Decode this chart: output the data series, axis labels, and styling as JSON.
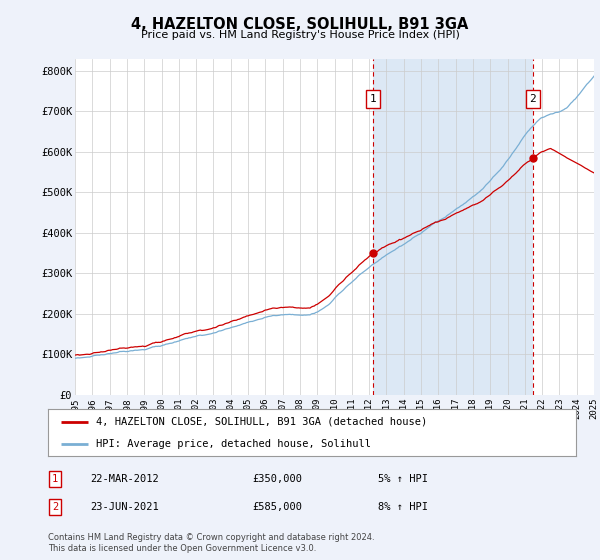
{
  "title": "4, HAZELTON CLOSE, SOLIHULL, B91 3GA",
  "subtitle": "Price paid vs. HM Land Registry's House Price Index (HPI)",
  "ylim": [
    0,
    830000
  ],
  "yticks": [
    0,
    100000,
    200000,
    300000,
    400000,
    500000,
    600000,
    700000,
    800000
  ],
  "ytick_labels": [
    "£0",
    "£100K",
    "£200K",
    "£300K",
    "£400K",
    "£500K",
    "£600K",
    "£700K",
    "£800K"
  ],
  "background_color": "#eef2fa",
  "plot_bg_color": "#ffffff",
  "shade_color": "#dce8f5",
  "grid_color": "#cccccc",
  "line1_color": "#cc0000",
  "line2_color": "#7aafd4",
  "sale1_year": 2012.22,
  "sale1_price": 350000,
  "sale2_year": 2021.47,
  "sale2_price": 585000,
  "annotation1_date": "22-MAR-2012",
  "annotation1_price": "£350,000",
  "annotation1_hpi": "5% ↑ HPI",
  "annotation2_date": "23-JUN-2021",
  "annotation2_price": "£585,000",
  "annotation2_hpi": "8% ↑ HPI",
  "legend_line1": "4, HAZELTON CLOSE, SOLIHULL, B91 3GA (detached house)",
  "legend_line2": "HPI: Average price, detached house, Solihull",
  "footer": "Contains HM Land Registry data © Crown copyright and database right 2024.\nThis data is licensed under the Open Government Licence v3.0.",
  "start_year": 1995,
  "end_year": 2025,
  "xtick_years": [
    1995,
    1996,
    1997,
    1998,
    1999,
    2000,
    2001,
    2002,
    2003,
    2004,
    2005,
    2006,
    2007,
    2008,
    2009,
    2010,
    2011,
    2012,
    2013,
    2014,
    2015,
    2016,
    2017,
    2018,
    2019,
    2020,
    2021,
    2022,
    2023,
    2024,
    2025
  ]
}
